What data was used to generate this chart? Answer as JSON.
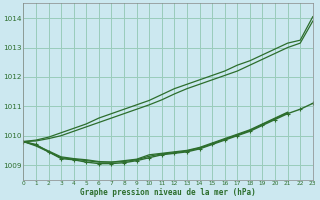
{
  "background_color": "#cce8f0",
  "grid_color": "#99ccbb",
  "line_color": "#2d6e2d",
  "title": "Graphe pression niveau de la mer (hPa)",
  "xlim": [
    0,
    23
  ],
  "ylim": [
    1008.5,
    1014.5
  ],
  "yticks": [
    1009,
    1010,
    1011,
    1012,
    1013,
    1014
  ],
  "xticks": [
    0,
    1,
    2,
    3,
    4,
    5,
    6,
    7,
    8,
    9,
    10,
    11,
    12,
    13,
    14,
    15,
    16,
    17,
    18,
    19,
    20,
    21,
    22,
    23
  ],
  "line_straight1": [
    1009.8,
    1009.85,
    1009.95,
    1010.1,
    1010.25,
    1010.4,
    1010.6,
    1010.75,
    1010.9,
    1011.05,
    1011.2,
    1011.4,
    1011.6,
    1011.75,
    1011.9,
    1012.05,
    1012.2,
    1012.4,
    1012.55,
    1012.75,
    1012.95,
    1013.15,
    1013.25,
    1014.05
  ],
  "line_straight2": [
    1009.8,
    1009.82,
    1009.9,
    1010.0,
    1010.15,
    1010.3,
    1010.45,
    1010.6,
    1010.75,
    1010.9,
    1011.05,
    1011.22,
    1011.42,
    1011.6,
    1011.75,
    1011.9,
    1012.05,
    1012.2,
    1012.4,
    1012.6,
    1012.8,
    1013.0,
    1013.15,
    1013.9
  ],
  "line_dip1": [
    1009.8,
    1009.65,
    1009.45,
    1009.25,
    1009.2,
    1009.15,
    1009.1,
    1009.1,
    1009.15,
    1009.2,
    1009.35,
    1009.4,
    1009.45,
    1009.5,
    1009.6,
    1009.75,
    1009.9,
    1010.05,
    1010.2,
    1010.4,
    1010.6,
    1010.8,
    null,
    null
  ],
  "line_dip2": [
    1009.8,
    1009.68,
    1009.48,
    1009.28,
    1009.22,
    1009.18,
    1009.12,
    1009.1,
    1009.12,
    1009.18,
    1009.3,
    1009.38,
    1009.42,
    1009.48,
    1009.58,
    1009.72,
    1009.88,
    1010.02,
    1010.18,
    1010.38,
    1010.58,
    1010.78,
    null,
    null
  ],
  "series_main": [
    1009.8,
    1009.7,
    1009.45,
    1009.22,
    1009.18,
    1009.1,
    1009.05,
    1009.05,
    1009.08,
    1009.15,
    1009.25,
    1009.35,
    1009.4,
    1009.45,
    1009.55,
    1009.7,
    1009.85,
    1010.0,
    1010.15,
    1010.35,
    1010.55,
    1010.75,
    1010.9,
    1011.1
  ]
}
